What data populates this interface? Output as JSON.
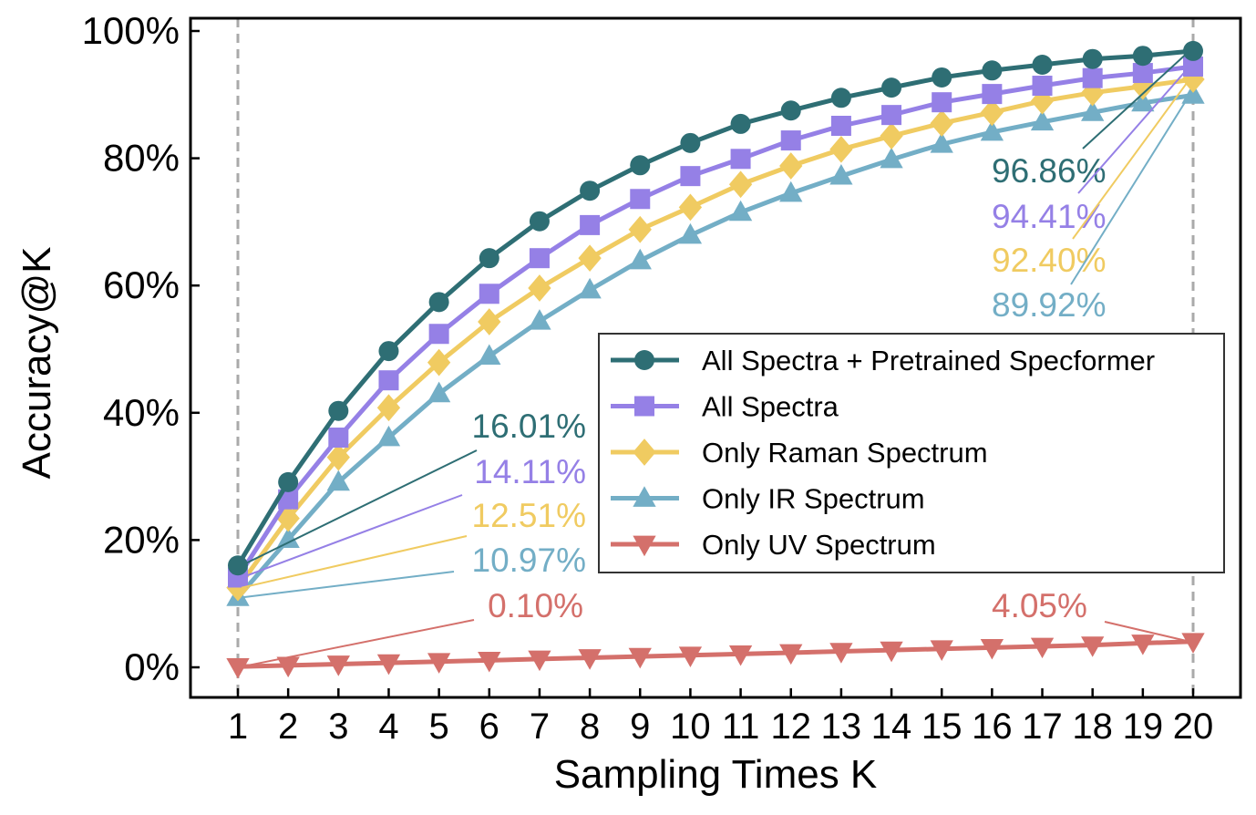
{
  "chart_data": {
    "type": "line",
    "title": "",
    "xlabel": "Sampling Times K",
    "ylabel": "Accuracy@K",
    "x": [
      1,
      2,
      3,
      4,
      5,
      6,
      7,
      8,
      9,
      10,
      11,
      12,
      13,
      14,
      15,
      16,
      17,
      18,
      19,
      20
    ],
    "xticks": [
      "1",
      "2",
      "3",
      "4",
      "5",
      "6",
      "7",
      "8",
      "9",
      "10",
      "11",
      "12",
      "13",
      "14",
      "15",
      "16",
      "17",
      "18",
      "19",
      "20"
    ],
    "yticks": [
      "0%",
      "20%",
      "40%",
      "60%",
      "80%",
      "100%"
    ],
    "ytick_values": [
      0,
      20,
      40,
      60,
      80,
      100
    ],
    "ylim": [
      -4.5,
      102
    ],
    "xlim": [
      0.05,
      20.9
    ],
    "grid": false,
    "legend_position": "center-right",
    "series": [
      {
        "name": "All Spectra + Pretrained Specformer",
        "color": "#2e6e74",
        "marker": "circle",
        "values": [
          16.01,
          29.1,
          40.3,
          49.7,
          57.4,
          64.3,
          70.1,
          74.9,
          78.9,
          82.4,
          85.4,
          87.5,
          89.5,
          91.1,
          92.7,
          93.8,
          94.7,
          95.6,
          96.1,
          96.86
        ]
      },
      {
        "name": "All Spectra",
        "color": "#9580e6",
        "marker": "square",
        "values": [
          14.11,
          26.4,
          36.1,
          45.1,
          52.4,
          58.7,
          64.3,
          69.5,
          73.6,
          77.2,
          79.9,
          82.8,
          85.1,
          86.8,
          88.8,
          90.1,
          91.4,
          92.6,
          93.4,
          94.41
        ]
      },
      {
        "name": "Only Raman Spectrum",
        "color": "#f0cb61",
        "marker": "diamond",
        "values": [
          12.51,
          23.4,
          33.0,
          40.8,
          47.9,
          54.3,
          59.6,
          64.3,
          68.8,
          72.3,
          75.9,
          78.8,
          81.4,
          83.5,
          85.5,
          87.2,
          89.0,
          90.3,
          91.3,
          92.4
        ]
      },
      {
        "name": "Only IR Spectrum",
        "color": "#73aec6",
        "marker": "triangle-up",
        "values": [
          10.97,
          20.1,
          29.1,
          36.1,
          43.0,
          48.9,
          54.4,
          59.3,
          63.9,
          67.9,
          71.5,
          74.5,
          77.2,
          79.8,
          82.2,
          84.1,
          85.7,
          87.2,
          88.7,
          89.92
        ]
      },
      {
        "name": "Only UV Spectrum",
        "color": "#d4706b",
        "marker": "triangle-down",
        "values": [
          0.1,
          0.3,
          0.5,
          0.7,
          0.9,
          1.1,
          1.3,
          1.5,
          1.7,
          1.9,
          2.1,
          2.3,
          2.5,
          2.7,
          2.9,
          3.1,
          3.3,
          3.5,
          3.8,
          4.05
        ]
      }
    ],
    "annotations": [
      {
        "series": 0,
        "x": 20,
        "text": "96.86%"
      },
      {
        "series": 1,
        "x": 20,
        "text": "94.41%"
      },
      {
        "series": 2,
        "x": 20,
        "text": "92.40%"
      },
      {
        "series": 3,
        "x": 20,
        "text": "89.92%"
      },
      {
        "series": 0,
        "x": 1,
        "text": "16.01%"
      },
      {
        "series": 1,
        "x": 1,
        "text": "14.11%"
      },
      {
        "series": 2,
        "x": 1,
        "text": "12.51%"
      },
      {
        "series": 3,
        "x": 1,
        "text": "10.97%"
      },
      {
        "series": 4,
        "x": 1,
        "text": "0.10%"
      },
      {
        "series": 4,
        "x": 20,
        "text": "4.05%"
      }
    ],
    "reference_lines_x": [
      1,
      20
    ]
  }
}
